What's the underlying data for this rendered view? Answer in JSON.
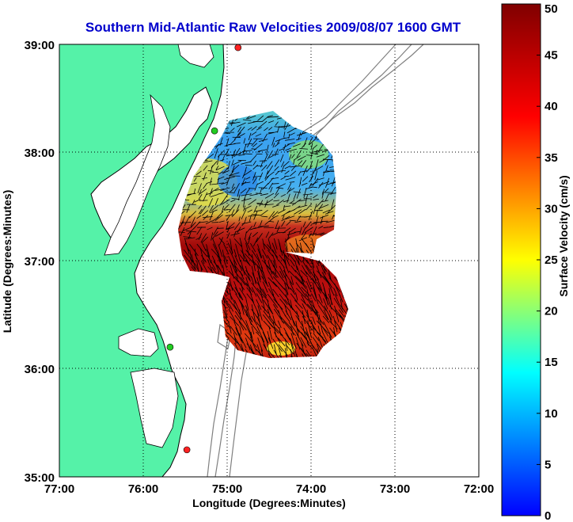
{
  "title": "Southern Mid-Atlantic Raw Velocities 2009/08/07 1600 GMT",
  "x_axis": {
    "label": "Longitude (Degrees:Minutes)",
    "ticks": [
      "77:00",
      "76:00",
      "75:00",
      "74:00",
      "73:00",
      "72:00"
    ]
  },
  "y_axis": {
    "label": "Latitude (Degrees:Minutes)",
    "ticks": [
      "39:00",
      "38:00",
      "37:00",
      "36:00",
      "35:00"
    ]
  },
  "colorbar": {
    "label": "Surface Velocity (cm/s)",
    "ticks": [
      "0",
      "5",
      "10",
      "15",
      "20",
      "25",
      "30",
      "35",
      "40",
      "45",
      "50"
    ],
    "min": 0,
    "max": 50,
    "colormap": [
      "#0000ff",
      "#00ffff",
      "#ffff00",
      "#ff0000",
      "#800000"
    ]
  },
  "colors": {
    "land": "#55f2a8",
    "water": "#ffffff",
    "coastline": "#000000",
    "bathymetry": "#808080",
    "station_green": "#22cc22",
    "station_red": "#ff2222"
  },
  "map_extent": {
    "lon_min": -77,
    "lon_max": -72,
    "lat_min": 35,
    "lat_max": 39
  },
  "stations": [
    {
      "color": "red",
      "lon": -74.87,
      "lat": 38.97
    },
    {
      "color": "green",
      "lon": -75.15,
      "lat": 38.2
    },
    {
      "color": "green",
      "lon": -75.68,
      "lat": 36.2
    },
    {
      "color": "red",
      "lon": -75.48,
      "lat": 35.25
    }
  ]
}
